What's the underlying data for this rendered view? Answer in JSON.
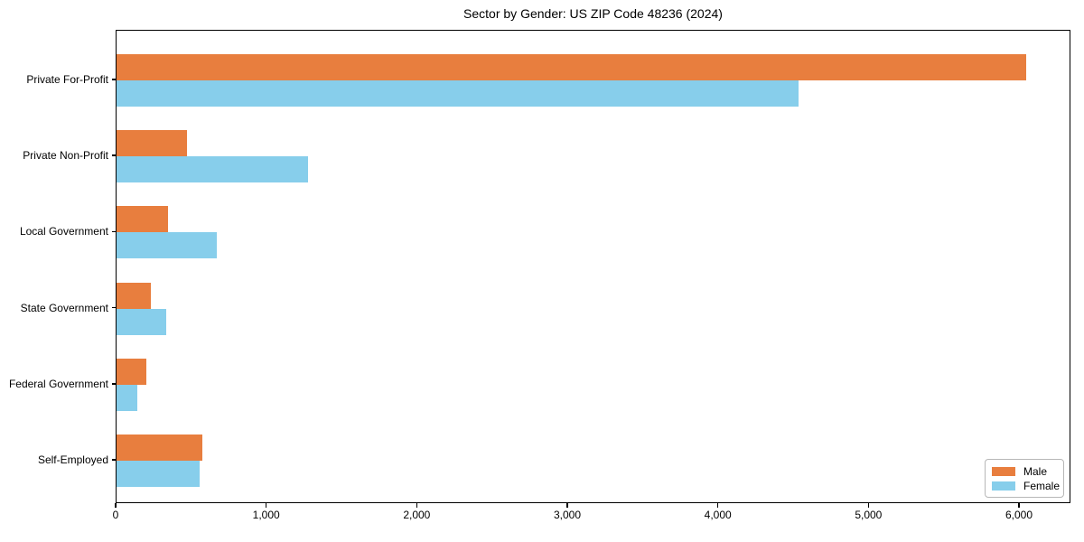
{
  "chart_data": {
    "type": "bar",
    "orientation": "horizontal",
    "title": "Sector by Gender: US ZIP Code 48236 (2024)",
    "xlabel": "",
    "ylabel": "",
    "categories": [
      "Private For-Profit",
      "Private Non-Profit",
      "Local Government",
      "State Government",
      "Federal Government",
      "Self-Employed"
    ],
    "series": [
      {
        "name": "Male",
        "color": "#e87e3e",
        "values": [
          6040,
          465,
          340,
          230,
          200,
          570
        ]
      },
      {
        "name": "Female",
        "color": "#87ceeb",
        "values": [
          4530,
          1270,
          665,
          330,
          135,
          550
        ]
      }
    ],
    "xlim": [
      0,
      6342
    ],
    "x_tick_values": [
      0,
      1000,
      2000,
      3000,
      4000,
      5000,
      6000
    ],
    "x_tick_labels": [
      "0",
      "1,000",
      "2,000",
      "3,000",
      "4,000",
      "5,000",
      "6,000"
    ],
    "grid": false,
    "legend_position": "lower right"
  }
}
